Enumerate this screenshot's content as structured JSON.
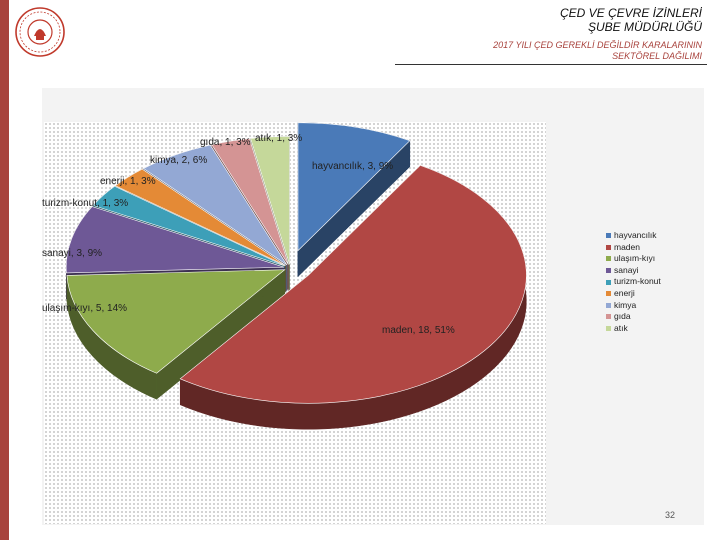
{
  "header": {
    "title_line1": "ÇED VE ÇEVRE İZİNLERİ",
    "title_line2": "ŞUBE MÜDÜRLÜĞÜ",
    "subtitle_line1": "2017 YILI ÇED GEREKLİ DEĞİLDİR KARALARININ",
    "subtitle_line2": "SEKTÖREL DAĞILIMI"
  },
  "page_number": "32",
  "colors": {
    "left_bar": "#a8423c",
    "logo": "#c0392b"
  },
  "chart_data": {
    "type": "pie",
    "style": "3d-exploded",
    "title": "",
    "legend_position": "right",
    "categories": [
      "hayvancılık",
      "maden",
      "ulaşım-kıyı",
      "sanayi",
      "turizm-konut",
      "enerji",
      "kimya",
      "gıda",
      "atık"
    ],
    "values": [
      3,
      18,
      5,
      3,
      1,
      1,
      2,
      1,
      1
    ],
    "percents": [
      "9%",
      "51%",
      "14%",
      "9%",
      "3%",
      "3%",
      "6%",
      "3%",
      "3%"
    ],
    "data_labels": [
      "hayvancılık, 3, 9%",
      "maden, 18, 51%",
      "ulaşım-kıyı, 5, 14%",
      "sanayi, 3, 9%",
      "turizm-konut, 1, 3%",
      "enerji, 1, 3%",
      "kimya, 2, 6%",
      "gıda, 1, 3%",
      "atık, 1, 3%"
    ],
    "colors": [
      "#4a7ab8",
      "#b14744",
      "#8eab4c",
      "#6e5896",
      "#3d9fb8",
      "#e48a36",
      "#93a8d4",
      "#d49494",
      "#c5d89a"
    ]
  }
}
